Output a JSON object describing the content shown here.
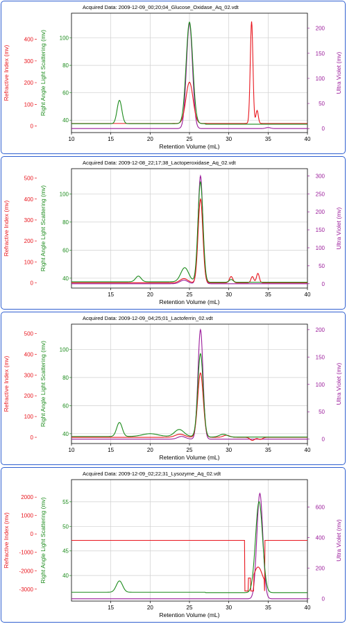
{
  "axes": {
    "xlabel": "Retention Volume (mL)",
    "ri_label": "Refractive Index (mv)",
    "ls_label": "Right Angle Light Scattering (mv)",
    "uv_label": "Ultra Violet (mv)"
  },
  "colors": {
    "ri": "#e8141c",
    "ls": "#1a8a1a",
    "uv": "#9a1a9a",
    "frame": "#2f5fd0",
    "grid": "#cfcfcf"
  },
  "chart_data": [
    {
      "type": "line",
      "title": "Acquired Data: 2009-12-09_00;20;04_Glucose_Oxidase_Aq_02.vdt",
      "xlim": [
        10,
        40
      ],
      "x_ticks": [
        10,
        15,
        20,
        25,
        30,
        35,
        40
      ],
      "ri_lim": [
        -30,
        520
      ],
      "ri_ticks": [
        0,
        100,
        200,
        300,
        400
      ],
      "ls_lim": [
        31,
        118
      ],
      "ls_ticks": [
        40,
        60,
        80,
        100
      ],
      "uv_lim": [
        -8,
        230
      ],
      "uv_ticks": [
        0,
        50,
        100,
        150,
        200
      ],
      "series": [
        {
          "name": "RI",
          "axis": "ri",
          "baseline": 12,
          "peaks": [
            [
              25,
              190,
              0.45
            ],
            [
              32.9,
              470,
              0.17
            ],
            [
              33.6,
              60,
              0.15
            ]
          ]
        },
        {
          "name": "LS",
          "axis": "ls",
          "baseline": 37.5,
          "peaks": [
            [
              16.1,
              17,
              0.3
            ],
            [
              25.0,
              74,
              0.42
            ]
          ]
        },
        {
          "name": "UV",
          "axis": "uv",
          "baseline": 0,
          "peaks": [
            [
              25.0,
              210,
              0.38
            ],
            [
              35,
              2,
              0.3
            ]
          ]
        }
      ]
    },
    {
      "type": "line",
      "title": "Acquired Data: 2009-12-08_22;17;38_Lactoperoxidase_Aq_02.vdt",
      "xlim": [
        10,
        40
      ],
      "x_ticks": [
        15,
        20,
        25,
        30,
        35,
        40
      ],
      "ri_lim": [
        -25,
        545
      ],
      "ri_ticks": [
        0,
        100,
        200,
        300,
        400,
        500
      ],
      "ls_lim": [
        33,
        118
      ],
      "ls_ticks": [
        40,
        60,
        80,
        100
      ],
      "uv_lim": [
        -12,
        320
      ],
      "uv_ticks": [
        0,
        50,
        100,
        150,
        200,
        250,
        300
      ],
      "series": [
        {
          "name": "RI",
          "axis": "ri",
          "baseline": 0,
          "peaks": [
            [
              24.3,
              20,
              0.5
            ],
            [
              26.4,
              400,
              0.3
            ],
            [
              30.3,
              30,
              0.22
            ],
            [
              33.0,
              30,
              0.18
            ],
            [
              33.7,
              45,
              0.18
            ]
          ]
        },
        {
          "name": "LS",
          "axis": "ls",
          "baseline": 37.5,
          "peaks": [
            [
              18.5,
              4,
              0.35
            ],
            [
              24.4,
              10,
              0.5
            ],
            [
              26.4,
              71,
              0.32
            ],
            [
              30.3,
              2,
              0.25
            ]
          ]
        },
        {
          "name": "UV",
          "axis": "uv",
          "baseline": 0,
          "peaks": [
            [
              24.3,
              10,
              0.5
            ],
            [
              26.4,
              300,
              0.3
            ]
          ]
        }
      ]
    },
    {
      "type": "line",
      "title": "Acquired Data: 2009-12-09_04;25;01_Lactoferrin_02.vdt",
      "xlim": [
        10,
        40
      ],
      "x_ticks": [
        10,
        15,
        20,
        25,
        30,
        35,
        40
      ],
      "ri_lim": [
        -30,
        545
      ],
      "ri_ticks": [
        0,
        100,
        200,
        300,
        400,
        500
      ],
      "ls_lim": [
        33,
        118
      ],
      "ls_ticks": [
        40,
        60,
        80,
        100
      ],
      "uv_lim": [
        -8,
        210
      ],
      "uv_ticks": [
        0,
        50,
        100,
        150,
        200
      ],
      "series": [
        {
          "name": "RI",
          "axis": "ri",
          "baseline": 0,
          "peaks": [
            [
              23.8,
              15,
              0.6
            ],
            [
              26.4,
              310,
              0.35
            ],
            [
              29.7,
              10,
              0.4
            ],
            [
              33.0,
              -15,
              0.3
            ],
            [
              34.0,
              -10,
              0.3
            ]
          ]
        },
        {
          "name": "LS",
          "axis": "ls",
          "baseline": 38,
          "peaks": [
            [
              16.1,
              10,
              0.35
            ],
            [
              20.0,
              2,
              1.0
            ],
            [
              23.7,
              5,
              0.6
            ],
            [
              26.4,
              59,
              0.34
            ],
            [
              29.3,
              2,
              0.5
            ]
          ]
        },
        {
          "name": "UV",
          "axis": "uv",
          "baseline": 0,
          "peaks": [
            [
              24.0,
              5,
              0.5
            ],
            [
              26.4,
              200,
              0.32
            ]
          ]
        }
      ]
    },
    {
      "type": "line",
      "title": "Acquired Data: 2009-12-09_02;22;31_Lysozyme_Aq_02.vdt",
      "xlim": [
        10,
        40
      ],
      "x_ticks": [
        15,
        20,
        25,
        30,
        35,
        40
      ],
      "ri_lim": [
        -3650,
        2950
      ],
      "ri_ticks": [
        -3000,
        -2000,
        -1000,
        0,
        1000,
        2000
      ],
      "ls_lim": [
        34.8,
        59.5
      ],
      "ls_ticks": [
        40,
        45,
        50,
        55
      ],
      "uv_lim": [
        -15,
        780
      ],
      "uv_ticks": [
        0,
        200,
        400,
        600
      ],
      "series": [
        {
          "name": "RI",
          "axis": "ri",
          "baseline": -350
        },
        {
          "name": "LS",
          "axis": "ls",
          "baseline": 36.6,
          "peaks": [
            [
              16.1,
              2.3,
              0.4
            ],
            [
              33.85,
              18.5,
              0.45
            ]
          ]
        },
        {
          "name": "UV",
          "axis": "uv",
          "baseline": 0,
          "peaks": [
            [
              33.95,
              690,
              0.38
            ]
          ]
        }
      ]
    }
  ]
}
